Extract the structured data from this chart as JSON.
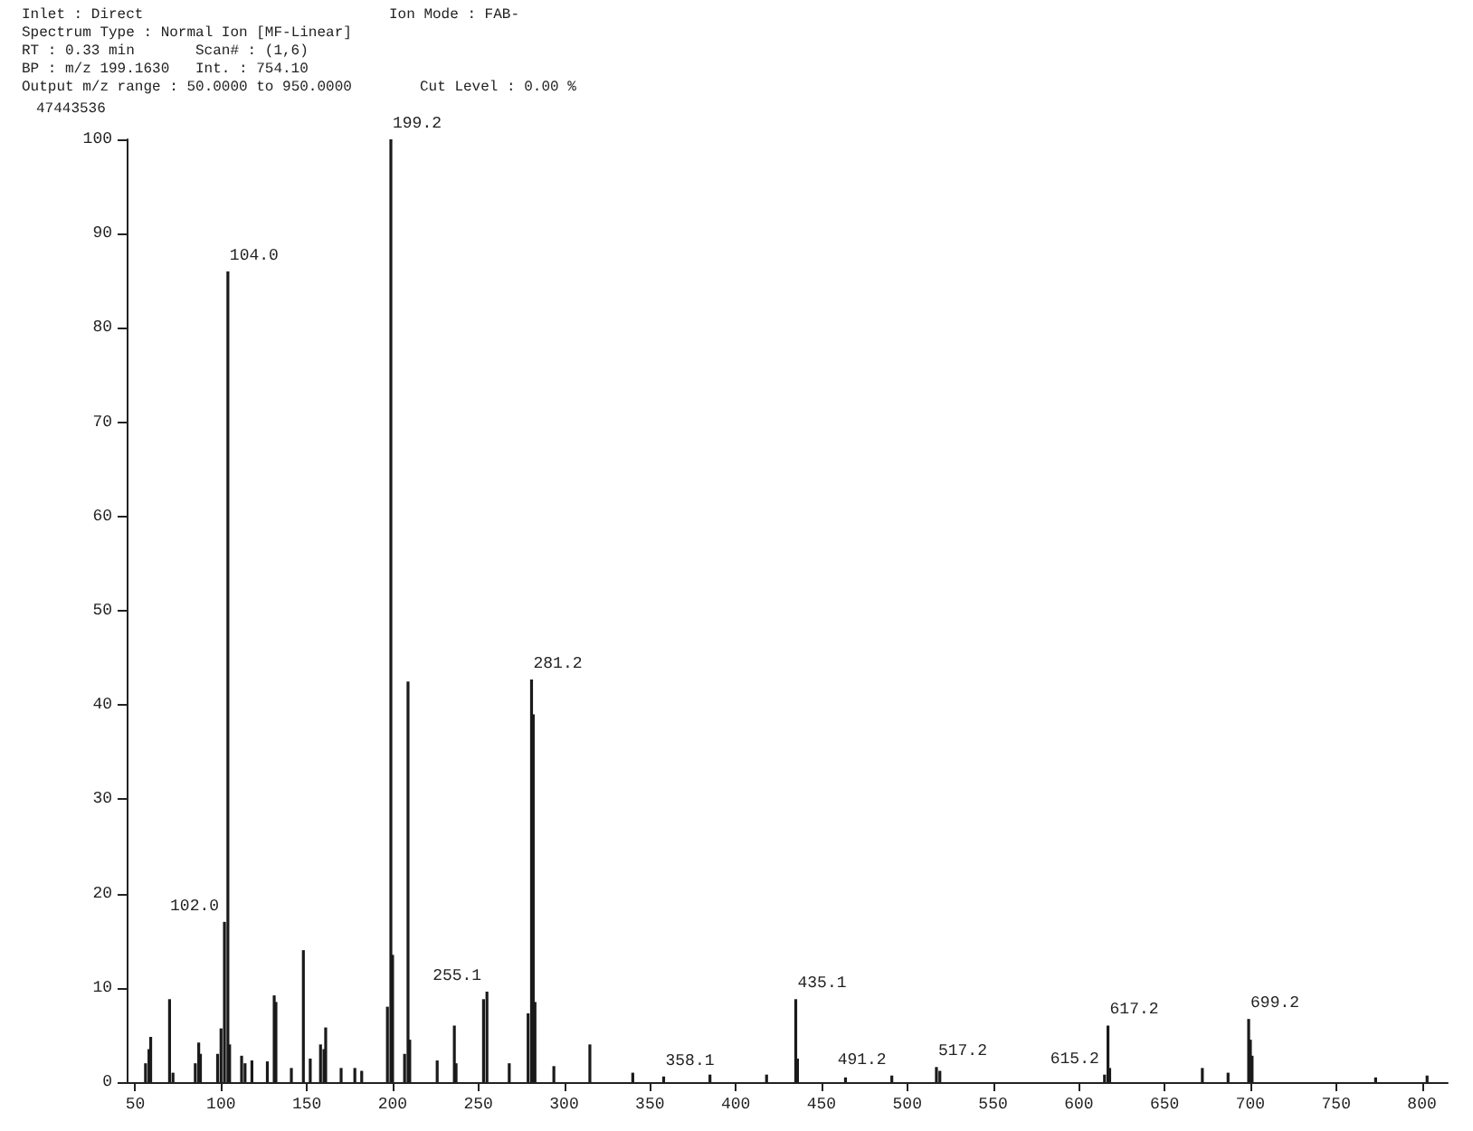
{
  "chart_data": {
    "type": "bar",
    "annotations": [
      "Inlet : Direct",
      "Ion Mode : FAB-",
      "Spectrum Type : Normal Ion [MF-Linear]",
      "RT : 0.33 min",
      "Scan# : (1,6)",
      "BP : m/z 199.1630",
      "Int. : 754.10",
      "Output m/z range : 50.0000 to 950.0000",
      "Cut Level : 0.00 %",
      "47443536",
      {
        "text": "102.0",
        "x": 102,
        "y": 17
      },
      {
        "text": "104.0",
        "x": 104,
        "y": 86
      },
      {
        "text": "199.2",
        "x": 199,
        "y": 100
      },
      {
        "text": "255.1",
        "x": 255,
        "y": 9.6
      },
      {
        "text": "281.2",
        "x": 281,
        "y": 42.7
      },
      {
        "text": "358.1",
        "x": 358,
        "y": 0.6
      },
      {
        "text": "435.1",
        "x": 435,
        "y": 8.8
      },
      {
        "text": "491.2",
        "x": 491,
        "y": 0.7
      },
      {
        "text": "517.2",
        "x": 517,
        "y": 1.6
      },
      {
        "text": "615.2",
        "x": 615,
        "y": 0.8
      },
      {
        "text": "617.2",
        "x": 617,
        "y": 6
      },
      {
        "text": "699.2",
        "x": 699,
        "y": 6.7
      }
    ],
    "x": [
      56,
      58,
      59,
      70,
      72,
      85,
      87,
      88,
      98,
      100,
      102,
      104,
      105,
      112,
      114,
      118,
      127,
      131,
      132,
      141,
      148,
      152,
      158,
      160,
      161,
      170,
      178,
      182,
      197,
      199,
      200,
      207,
      209,
      210,
      226,
      236,
      237,
      253,
      255,
      268,
      279,
      281,
      282,
      283,
      294,
      315,
      340,
      358,
      385,
      418,
      435,
      436,
      464,
      491,
      517,
      519,
      615,
      617,
      618,
      672,
      687,
      699,
      700,
      701,
      773,
      803
    ],
    "values": [
      2,
      3.5,
      4.8,
      8.8,
      1,
      2,
      4.2,
      3,
      3,
      5.7,
      17,
      86,
      4,
      2.8,
      2,
      2.3,
      2.2,
      9.2,
      8.5,
      1.5,
      14,
      2.5,
      4,
      3.5,
      5.8,
      1.5,
      1.5,
      1.2,
      8,
      100,
      13.5,
      3,
      42.5,
      4.5,
      2.3,
      6,
      2,
      8.8,
      9.6,
      2,
      7.3,
      42.7,
      39,
      8.5,
      1.7,
      4,
      1,
      0.6,
      0.8,
      0.8,
      8.8,
      2.5,
      0.5,
      0.7,
      1.6,
      1.2,
      0.8,
      6,
      1.5,
      1.5,
      1,
      6.7,
      4.5,
      2.8,
      0.5,
      0.7
    ],
    "color": "#1a1a1a",
    "xlim": [
      45,
      815
    ],
    "xticks": [
      50,
      100,
      150,
      200,
      250,
      300,
      350,
      400,
      450,
      500,
      550,
      600,
      650,
      700,
      750,
      800
    ],
    "ylim": [
      0,
      100
    ],
    "yticks": [
      0,
      10,
      20,
      30,
      40,
      50,
      60,
      70,
      80,
      90,
      100
    ],
    "grid": false
  }
}
